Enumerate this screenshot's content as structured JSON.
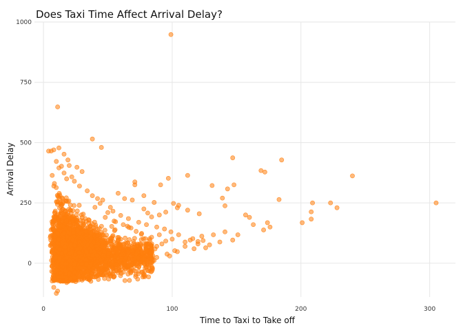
{
  "chart_data": {
    "type": "scatter",
    "title": "Does Taxi Time Affect Arrival Delay?",
    "xlabel": "Time to Taxi to Take off",
    "ylabel": "Arrival Delay",
    "xlim": [
      -7,
      320
    ],
    "ylim": [
      -140,
      1000
    ],
    "x_ticks": [
      0,
      100,
      200,
      300
    ],
    "y_ticks": [
      0,
      250,
      500,
      750,
      1000
    ],
    "x_tick_labels": [
      "0",
      "100",
      "200",
      "300"
    ],
    "y_tick_labels": [
      "0",
      "250",
      "500",
      "750",
      "1000"
    ],
    "grid": true,
    "point_color": "#FF7F0E",
    "point_opacity": 0.55,
    "points": [
      [
        99,
        948
      ],
      [
        11,
        648
      ],
      [
        38,
        515
      ],
      [
        45,
        480
      ],
      [
        12,
        478
      ],
      [
        8,
        470
      ],
      [
        4,
        465
      ],
      [
        6,
        465
      ],
      [
        147,
        437
      ],
      [
        185,
        428
      ],
      [
        16,
        452
      ],
      [
        10,
        422
      ],
      [
        19,
        428
      ],
      [
        14,
        402
      ],
      [
        12,
        395
      ],
      [
        240,
        362
      ],
      [
        112,
        364
      ],
      [
        169,
        384
      ],
      [
        172,
        378
      ],
      [
        97,
        352
      ],
      [
        148,
        325
      ],
      [
        143,
        308
      ],
      [
        71,
        337
      ],
      [
        71,
        325
      ],
      [
        91,
        325
      ],
      [
        131,
        322
      ],
      [
        183,
        264
      ],
      [
        209,
        250
      ],
      [
        223,
        250
      ],
      [
        228,
        230
      ],
      [
        208,
        213
      ],
      [
        208,
        183
      ],
      [
        201,
        168
      ],
      [
        305,
        250
      ],
      [
        139,
        270
      ],
      [
        141,
        238
      ],
      [
        112,
        220
      ],
      [
        121,
        205
      ],
      [
        157,
        200
      ],
      [
        160,
        190
      ],
      [
        174,
        168
      ],
      [
        163,
        160
      ],
      [
        176,
        150
      ],
      [
        171,
        138
      ],
      [
        141,
        130
      ],
      [
        132,
        118
      ],
      [
        151,
        118
      ],
      [
        123,
        112
      ],
      [
        147,
        96
      ],
      [
        137,
        88
      ],
      [
        105,
        118
      ],
      [
        114,
        96
      ],
      [
        120,
        90
      ],
      [
        129,
        76
      ],
      [
        126,
        64
      ],
      [
        110,
        70
      ],
      [
        117,
        60
      ],
      [
        102,
        52
      ],
      [
        98,
        30
      ],
      [
        104,
        48
      ],
      [
        96,
        38
      ],
      [
        88,
        24
      ],
      [
        86,
        12
      ],
      [
        105,
        240
      ],
      [
        104,
        230
      ],
      [
        101,
        248
      ],
      [
        95,
        212
      ],
      [
        90,
        200
      ],
      [
        84,
        192
      ],
      [
        81,
        208
      ],
      [
        78,
        225
      ],
      [
        86,
        252
      ],
      [
        78,
        280
      ],
      [
        69,
        262
      ],
      [
        58,
        290
      ],
      [
        63,
        268
      ],
      [
        52,
        232
      ],
      [
        54,
        216
      ],
      [
        60,
        198
      ],
      [
        66,
        185
      ],
      [
        74,
        170
      ],
      [
        80,
        160
      ],
      [
        88,
        150
      ],
      [
        94,
        142
      ],
      [
        99,
        130
      ],
      [
        90,
        118
      ],
      [
        84,
        108
      ],
      [
        76,
        98
      ],
      [
        70,
        90
      ],
      [
        64,
        84
      ],
      [
        58,
        78
      ],
      [
        58,
        48
      ],
      [
        62,
        20
      ],
      [
        54,
        6
      ],
      [
        48,
        -10
      ],
      [
        46,
        -30
      ],
      [
        42,
        -50
      ],
      [
        36,
        -62
      ],
      [
        30,
        -70
      ],
      [
        25,
        -76
      ],
      [
        18,
        -80
      ],
      [
        10,
        -125
      ],
      [
        11,
        -115
      ],
      [
        8,
        -100
      ],
      [
        40,
        232
      ],
      [
        44,
        248
      ],
      [
        46,
        262
      ],
      [
        28,
        320
      ],
      [
        24,
        340
      ],
      [
        22,
        358
      ],
      [
        30,
        380
      ],
      [
        26,
        398
      ],
      [
        20,
        405
      ],
      [
        16,
        374
      ],
      [
        18,
        350
      ],
      [
        34,
        300
      ],
      [
        38,
        280
      ],
      [
        42,
        268
      ],
      [
        50,
        210
      ],
      [
        48,
        190
      ],
      [
        56,
        172
      ],
      [
        62,
        160
      ],
      [
        68,
        146
      ],
      [
        72,
        132
      ],
      [
        76,
        120
      ],
      [
        120,
        80
      ],
      [
        110,
        88
      ],
      [
        116,
        102
      ],
      [
        124,
        94
      ],
      [
        100,
        100
      ],
      [
        95,
        92
      ],
      [
        92,
        80
      ],
      [
        88,
        70
      ],
      [
        84,
        62
      ],
      [
        80,
        54
      ],
      [
        76,
        46
      ],
      [
        72,
        38
      ],
      [
        68,
        30
      ],
      [
        64,
        22
      ],
      [
        60,
        14
      ]
    ]
  }
}
